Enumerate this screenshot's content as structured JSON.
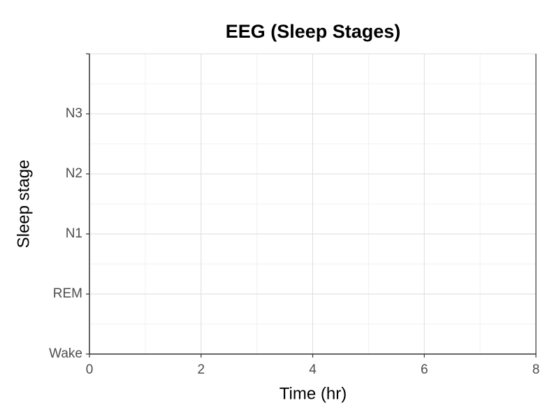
{
  "chart_data": {
    "type": "line",
    "title": "EEG (Sleep Stages)",
    "x_label": "Time (hr)",
    "y_label": "Sleep stage",
    "series": [],
    "xlim": [
      0,
      8
    ],
    "xticks": [
      0,
      2,
      4,
      6,
      8
    ],
    "ylim": [
      0,
      5
    ],
    "yticks": [
      {
        "value": 0,
        "label": "Wake"
      },
      {
        "value": 1,
        "label": "REM"
      },
      {
        "value": 2,
        "label": "N1"
      },
      {
        "value": 3,
        "label": "N2"
      },
      {
        "value": 4,
        "label": "N3"
      },
      {
        "value": 5,
        "label": null
      }
    ],
    "grid": true,
    "minor_grid": true
  }
}
